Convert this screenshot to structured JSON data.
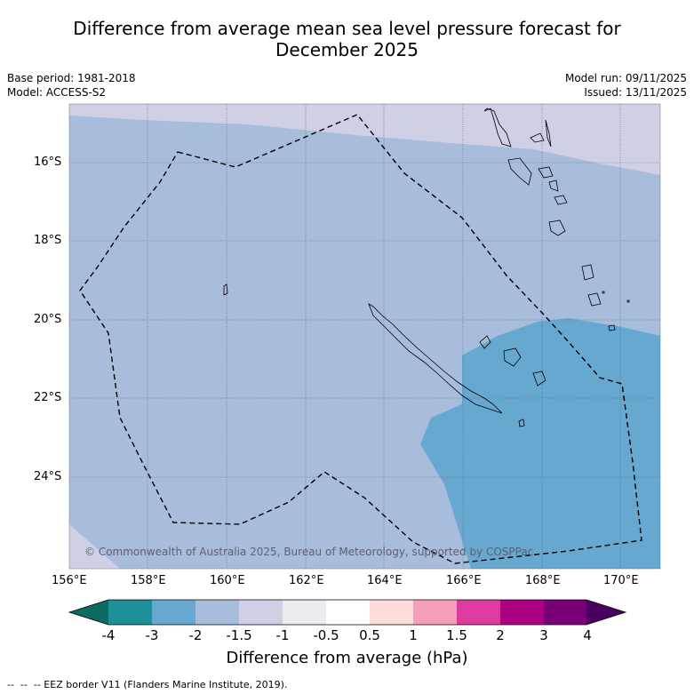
{
  "title_line1": "Difference from average mean sea level pressure forecast for",
  "title_line2": "December 2025",
  "base_period": "Base period: 1981-2018",
  "model": "Model: ACCESS-S2",
  "model_run": "Model run: 09/11/2025",
  "issued": "Issued: 13/11/2025",
  "copyright": "© Commonwealth of Australia 2025, Bureau of Meteorology, supported by COSPPac",
  "lat_ticks": [
    "16°S",
    "18°S",
    "20°S",
    "22°S",
    "24°S"
  ],
  "lon_ticks": [
    "156°E",
    "158°E",
    "160°E",
    "162°E",
    "164°E",
    "166°E",
    "168°E",
    "170°E"
  ],
  "colorbar": {
    "label": "Difference from average (hPa)",
    "ticks": [
      "-4",
      "-3",
      "-2",
      "-1.5",
      "-1",
      "-0.5",
      "0.5",
      "1",
      "1.5",
      "2",
      "3",
      "4"
    ],
    "colors": [
      "#0a6b62",
      "#1e9099",
      "#66a8d0",
      "#a8bcdc",
      "#cfd0e6",
      "#ececf0",
      "#ffffff",
      "#ffdddd",
      "#f6a0b8",
      "#de3aa0",
      "#ad0083",
      "#7a0077",
      "#4b005f"
    ]
  },
  "footer": "--  --  -- EEZ border V11 (Flanders Marine Institute, 2019)."
}
